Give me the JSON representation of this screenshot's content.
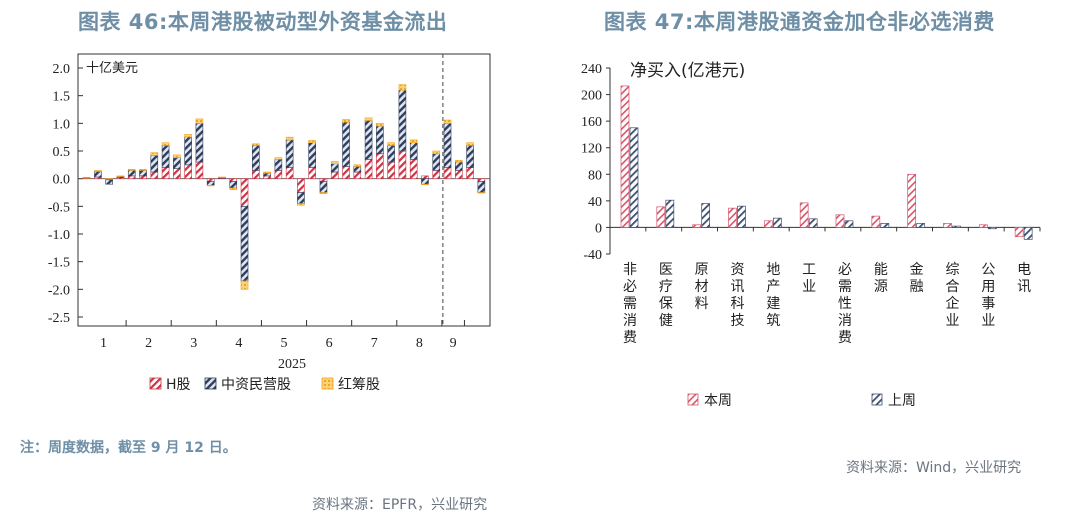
{
  "titles": {
    "left": "图表 46:本周港股被动型外资基金流出",
    "right": "图表 47:本周港股通资金加仓非必选消费"
  },
  "notes": {
    "left_note": "注：周度数据，截至 9 月 12 日。",
    "left_source": "资料来源：EPFR，兴业研究",
    "right_source": "资料来源：Wind，兴业研究"
  },
  "colors": {
    "h_share": "#cc3344",
    "chinese_private": "#2f3d5c",
    "red_chip": "#f2a51c",
    "this_week": "#d6546a",
    "last_week": "#3e4f70",
    "title": "#6f8fa6"
  },
  "chart_data": [
    {
      "type": "bar",
      "stacked": true,
      "unit_label": "十亿美元",
      "xlabel": "2025",
      "ylim": [
        -2.5,
        2.0
      ],
      "yticks": [
        "2.0",
        "1.5",
        "1.0",
        "0.5",
        "0.0",
        "-0.5",
        "-1.0",
        "-1.5",
        "-2.0",
        "-2.5"
      ],
      "month_labels": [
        "1",
        "2",
        "3",
        "4",
        "5",
        "6",
        "7",
        "8",
        "9"
      ],
      "month_weeks": [
        4,
        4,
        4,
        4,
        4,
        4,
        4,
        4,
        2
      ],
      "legend": [
        "H股",
        "中资民营股",
        "红筹股"
      ],
      "series": [
        {
          "name": "H股",
          "values": [
            0.02,
            0.03,
            -0.02,
            0.02,
            0.05,
            0.05,
            0.12,
            0.2,
            0.18,
            0.25,
            0.3,
            -0.05,
            0.02,
            -0.05,
            -0.5,
            0.15,
            0.05,
            0.15,
            0.2,
            -0.25,
            0.2,
            -0.05,
            0.12,
            0.22,
            0.12,
            0.35,
            0.45,
            0.3,
            0.5,
            0.35,
            0.05,
            0.15,
            0.2,
            0.15,
            0.2,
            -0.05
          ]
        },
        {
          "name": "中资民营股",
          "values": [
            0.0,
            0.1,
            -0.08,
            0.02,
            0.1,
            0.1,
            0.3,
            0.4,
            0.2,
            0.5,
            0.7,
            -0.07,
            0.0,
            -0.12,
            -1.35,
            0.45,
            0.05,
            0.2,
            0.5,
            -0.2,
            0.45,
            -0.2,
            0.15,
            0.8,
            0.1,
            0.7,
            0.5,
            0.3,
            1.1,
            0.3,
            -0.1,
            0.3,
            0.8,
            0.15,
            0.4,
            -0.2
          ]
        },
        {
          "name": "红筹股",
          "values": [
            0.0,
            0.02,
            0.0,
            0.01,
            0.02,
            0.02,
            0.05,
            0.05,
            0.05,
            0.05,
            0.08,
            -0.01,
            0.01,
            -0.03,
            -0.15,
            0.03,
            0.02,
            0.03,
            0.05,
            -0.03,
            0.04,
            -0.02,
            0.04,
            0.05,
            0.03,
            0.05,
            0.05,
            0.05,
            0.1,
            0.05,
            -0.01,
            0.05,
            0.06,
            0.03,
            0.05,
            -0.01
          ]
        }
      ]
    },
    {
      "type": "bar",
      "unit_label": "净买入(亿港元)",
      "ylim": [
        -40,
        240
      ],
      "yticks": [
        "240",
        "200",
        "160",
        "120",
        "80",
        "40",
        "0",
        "-40"
      ],
      "categories": [
        "非必需消费",
        "医疗保健",
        "原材料",
        "资讯科技",
        "地产建筑",
        "工业",
        "必需性消费",
        "能源",
        "金融",
        "综合企业",
        "公用事业",
        "电讯"
      ],
      "series": [
        {
          "name": "本周",
          "values": [
            213,
            31,
            4,
            29,
            10,
            37,
            19,
            17,
            80,
            6,
            4,
            -14
          ]
        },
        {
          "name": "上周",
          "values": [
            150,
            41,
            36,
            32,
            14,
            13,
            10,
            6,
            6,
            2,
            -2,
            -18
          ]
        }
      ]
    }
  ]
}
